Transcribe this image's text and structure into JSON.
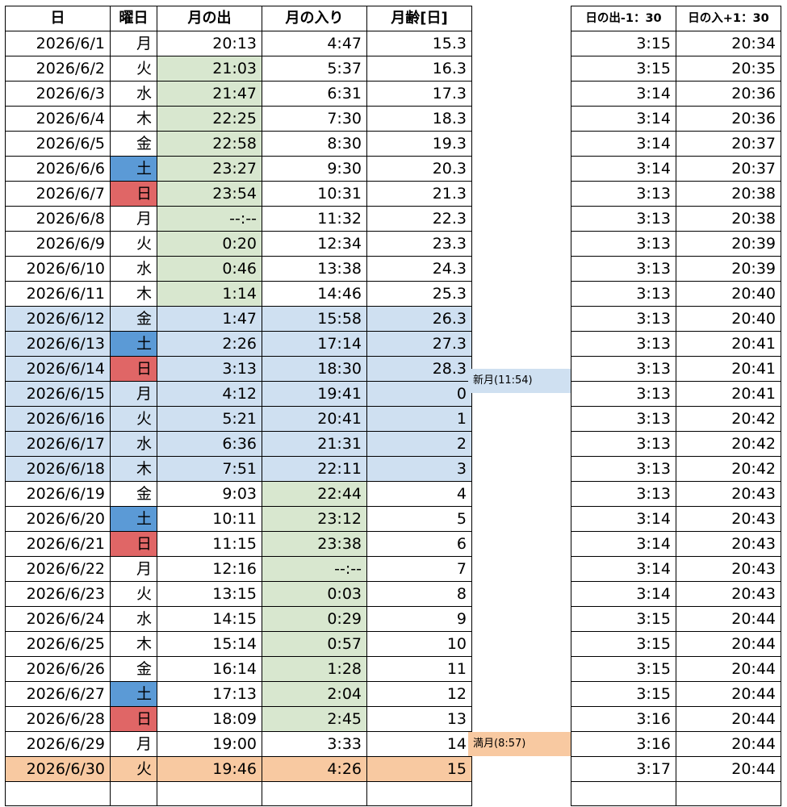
{
  "colors": {
    "green": "#d8e7cf",
    "blue": "#cfe0f1",
    "orange": "#f8c9a1",
    "saturday": "#5b9ad6",
    "sunday": "#e06666"
  },
  "headers": {
    "date": "日",
    "weekday": "曜日",
    "moonrise": "月の出",
    "moonset": "月の入り",
    "moon_age": "月齢[日]",
    "sunrise_adj": "日の出-1：30",
    "sunset_adj": "日の入+1：30"
  },
  "rows": [
    {
      "date": "2026/6/1",
      "weekday": "月",
      "moonrise": "20:13",
      "moonset": "4:47",
      "moon_age": "15.3",
      "sunrise_adj": "3:15",
      "sunset_adj": "20:34"
    },
    {
      "date": "2026/6/2",
      "weekday": "火",
      "moonrise": "21:03",
      "moonset": "5:37",
      "moon_age": "16.3",
      "sunrise_adj": "3:15",
      "sunset_adj": "20:35"
    },
    {
      "date": "2026/6/3",
      "weekday": "水",
      "moonrise": "21:47",
      "moonset": "6:31",
      "moon_age": "17.3",
      "sunrise_adj": "3:14",
      "sunset_adj": "20:36"
    },
    {
      "date": "2026/6/4",
      "weekday": "木",
      "moonrise": "22:25",
      "moonset": "7:30",
      "moon_age": "18.3",
      "sunrise_adj": "3:14",
      "sunset_adj": "20:36"
    },
    {
      "date": "2026/6/5",
      "weekday": "金",
      "moonrise": "22:58",
      "moonset": "8:30",
      "moon_age": "19.3",
      "sunrise_adj": "3:14",
      "sunset_adj": "20:37"
    },
    {
      "date": "2026/6/6",
      "weekday": "土",
      "moonrise": "23:27",
      "moonset": "9:30",
      "moon_age": "20.3",
      "sunrise_adj": "3:14",
      "sunset_adj": "20:37"
    },
    {
      "date": "2026/6/7",
      "weekday": "日",
      "moonrise": "23:54",
      "moonset": "10:31",
      "moon_age": "21.3",
      "sunrise_adj": "3:13",
      "sunset_adj": "20:38"
    },
    {
      "date": "2026/6/8",
      "weekday": "月",
      "moonrise": "--:--",
      "moonset": "11:32",
      "moon_age": "22.3",
      "sunrise_adj": "3:13",
      "sunset_adj": "20:38"
    },
    {
      "date": "2026/6/9",
      "weekday": "火",
      "moonrise": "0:20",
      "moonset": "12:34",
      "moon_age": "23.3",
      "sunrise_adj": "3:13",
      "sunset_adj": "20:39"
    },
    {
      "date": "2026/6/10",
      "weekday": "水",
      "moonrise": "0:46",
      "moonset": "13:38",
      "moon_age": "24.3",
      "sunrise_adj": "3:13",
      "sunset_adj": "20:39"
    },
    {
      "date": "2026/6/11",
      "weekday": "木",
      "moonrise": "1:14",
      "moonset": "14:46",
      "moon_age": "25.3",
      "sunrise_adj": "3:13",
      "sunset_adj": "20:40"
    },
    {
      "date": "2026/6/12",
      "weekday": "金",
      "moonrise": "1:47",
      "moonset": "15:58",
      "moon_age": "26.3",
      "sunrise_adj": "3:13",
      "sunset_adj": "20:40"
    },
    {
      "date": "2026/6/13",
      "weekday": "土",
      "moonrise": "2:26",
      "moonset": "17:14",
      "moon_age": "27.3",
      "sunrise_adj": "3:13",
      "sunset_adj": "20:41"
    },
    {
      "date": "2026/6/14",
      "weekday": "日",
      "moonrise": "3:13",
      "moonset": "18:30",
      "moon_age": "28.3",
      "sunrise_adj": "3:13",
      "sunset_adj": "20:41"
    },
    {
      "date": "2026/6/15",
      "weekday": "月",
      "moonrise": "4:12",
      "moonset": "19:41",
      "moon_age": "0",
      "sunrise_adj": "3:13",
      "sunset_adj": "20:41",
      "note": "新月(11:54)"
    },
    {
      "date": "2026/6/16",
      "weekday": "火",
      "moonrise": "5:21",
      "moonset": "20:41",
      "moon_age": "1",
      "sunrise_adj": "3:13",
      "sunset_adj": "20:42"
    },
    {
      "date": "2026/6/17",
      "weekday": "水",
      "moonrise": "6:36",
      "moonset": "21:31",
      "moon_age": "2",
      "sunrise_adj": "3:13",
      "sunset_adj": "20:42"
    },
    {
      "date": "2026/6/18",
      "weekday": "木",
      "moonrise": "7:51",
      "moonset": "22:11",
      "moon_age": "3",
      "sunrise_adj": "3:13",
      "sunset_adj": "20:42"
    },
    {
      "date": "2026/6/19",
      "weekday": "金",
      "moonrise": "9:03",
      "moonset": "22:44",
      "moon_age": "4",
      "sunrise_adj": "3:13",
      "sunset_adj": "20:43"
    },
    {
      "date": "2026/6/20",
      "weekday": "土",
      "moonrise": "10:11",
      "moonset": "23:12",
      "moon_age": "5",
      "sunrise_adj": "3:14",
      "sunset_adj": "20:43"
    },
    {
      "date": "2026/6/21",
      "weekday": "日",
      "moonrise": "11:15",
      "moonset": "23:38",
      "moon_age": "6",
      "sunrise_adj": "3:14",
      "sunset_adj": "20:43"
    },
    {
      "date": "2026/6/22",
      "weekday": "月",
      "moonrise": "12:16",
      "moonset": "--:--",
      "moon_age": "7",
      "sunrise_adj": "3:14",
      "sunset_adj": "20:43"
    },
    {
      "date": "2026/6/23",
      "weekday": "火",
      "moonrise": "13:15",
      "moonset": "0:03",
      "moon_age": "8",
      "sunrise_adj": "3:14",
      "sunset_adj": "20:43"
    },
    {
      "date": "2026/6/24",
      "weekday": "水",
      "moonrise": "14:15",
      "moonset": "0:29",
      "moon_age": "9",
      "sunrise_adj": "3:15",
      "sunset_adj": "20:44"
    },
    {
      "date": "2026/6/25",
      "weekday": "木",
      "moonrise": "15:14",
      "moonset": "0:57",
      "moon_age": "10",
      "sunrise_adj": "3:15",
      "sunset_adj": "20:44"
    },
    {
      "date": "2026/6/26",
      "weekday": "金",
      "moonrise": "16:14",
      "moonset": "1:28",
      "moon_age": "11",
      "sunrise_adj": "3:15",
      "sunset_adj": "20:44"
    },
    {
      "date": "2026/6/27",
      "weekday": "土",
      "moonrise": "17:13",
      "moonset": "2:04",
      "moon_age": "12",
      "sunrise_adj": "3:15",
      "sunset_adj": "20:44"
    },
    {
      "date": "2026/6/28",
      "weekday": "日",
      "moonrise": "18:09",
      "moonset": "2:45",
      "moon_age": "13",
      "sunrise_adj": "3:16",
      "sunset_adj": "20:44"
    },
    {
      "date": "2026/6/29",
      "weekday": "月",
      "moonrise": "19:00",
      "moonset": "3:33",
      "moon_age": "14",
      "sunrise_adj": "3:16",
      "sunset_adj": "20:44"
    },
    {
      "date": "2026/6/30",
      "weekday": "火",
      "moonrise": "19:46",
      "moonset": "4:26",
      "moon_age": "15",
      "sunrise_adj": "3:17",
      "sunset_adj": "20:44",
      "note": "満月(8:57)"
    }
  ]
}
